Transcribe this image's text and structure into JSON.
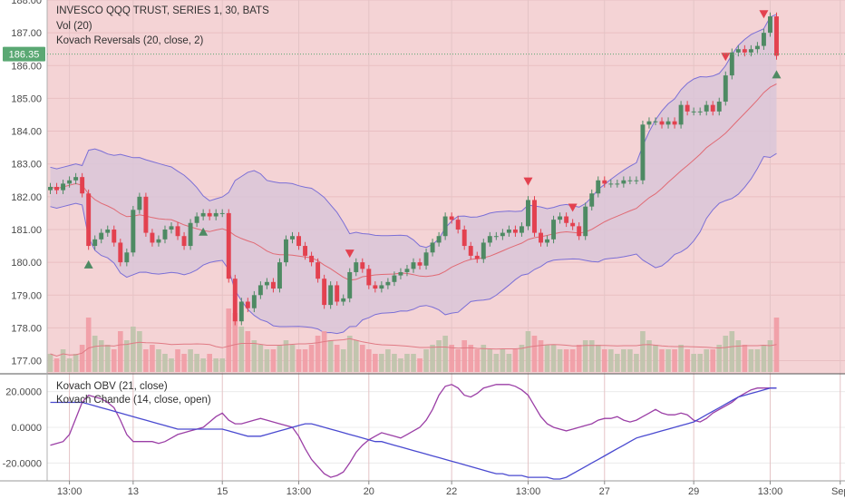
{
  "chart_title": "INVESCO QQQ TRUST, SERIES 1, 30, BATS",
  "legend_lines": [
    "Vol (20)",
    "Kovach Reversals (20, close, 2)"
  ],
  "lower_legend_lines": [
    "Kovach OBV (21, close)",
    "Kovach Chande (14, close, open)"
  ],
  "last_price_label": "186.35",
  "colors": {
    "up": "#4e8a63",
    "down": "#e3414f",
    "background_tint": "#f4cfd1",
    "band_fill": "#d9c6d8",
    "band_line": "#7b6fd6",
    "mid_line": "#e06a74",
    "obv_line": "#4a4ad0",
    "chande_line": "#9b3fa6",
    "price_tag": "#5aa873",
    "reversal_up": "#4e8a63",
    "reversal_down": "#e3414f"
  },
  "chart_data": {
    "type": "line",
    "price_axis": {
      "ylim": [
        176.6,
        188.0
      ],
      "ticks": [
        "188.00",
        "187.00",
        "186.00",
        "185.00",
        "184.00",
        "183.00",
        "182.00",
        "181.00",
        "180.00",
        "179.00",
        "178.00",
        "177.00"
      ],
      "tick_values": [
        188,
        187,
        186,
        185,
        184,
        183,
        182,
        181,
        180,
        179,
        178,
        177
      ]
    },
    "lower_axis": {
      "ylim": [
        -30,
        30
      ],
      "ticks": [
        "20.0000",
        "0.0000",
        "-20.0000"
      ],
      "tick_values": [
        20,
        0,
        -20
      ]
    },
    "x_ticks": [
      "13:00",
      "13",
      "15",
      "13:00",
      "20",
      "22",
      "13:00",
      "27",
      "29",
      "13:00",
      "Sep"
    ],
    "x_tick_positions": [
      3,
      13,
      27,
      39,
      50,
      63,
      75,
      87,
      101,
      113,
      124
    ],
    "bar_count": 115,
    "price_series": {
      "name": "",
      "close": [
        182.3,
        182.2,
        182.4,
        182.5,
        182.6,
        182.1,
        180.5,
        180.7,
        180.9,
        181.0,
        180.6,
        180.0,
        180.3,
        181.6,
        182.0,
        180.9,
        180.6,
        180.7,
        181.0,
        181.1,
        180.8,
        180.5,
        181.2,
        181.4,
        181.5,
        181.4,
        181.5,
        181.5,
        179.5,
        178.2,
        178.8,
        178.6,
        179.0,
        179.3,
        179.4,
        179.2,
        180.0,
        180.7,
        180.8,
        180.5,
        180.2,
        180.0,
        179.5,
        178.7,
        179.3,
        178.8,
        178.9,
        179.7,
        180.0,
        179.8,
        179.3,
        179.2,
        179.3,
        179.4,
        179.6,
        179.7,
        179.8,
        180.0,
        179.9,
        180.3,
        180.6,
        180.8,
        181.4,
        181.3,
        181.0,
        180.5,
        180.2,
        180.1,
        180.6,
        180.8,
        180.8,
        180.9,
        181.0,
        180.9,
        181.1,
        181.9,
        180.9,
        180.6,
        180.7,
        181.3,
        181.4,
        181.2,
        181.1,
        180.8,
        181.7,
        182.1,
        182.5,
        182.4,
        182.4,
        182.4,
        182.5,
        182.5,
        182.5,
        184.2,
        184.3,
        184.3,
        184.2,
        184.3,
        184.2,
        184.8,
        184.6,
        184.6,
        184.6,
        184.8,
        184.6,
        184.9,
        185.7,
        186.4,
        186.5,
        186.4,
        186.5,
        186.6,
        187.0,
        187.5,
        186.3
      ]
    },
    "volume_series": {
      "name": "",
      "values": [
        4,
        3,
        5,
        3,
        4,
        6,
        12,
        8,
        7,
        6,
        5,
        9,
        7,
        10,
        9,
        5,
        6,
        5,
        4,
        3,
        5,
        4,
        5,
        4,
        3,
        4,
        3,
        3,
        14,
        13,
        10,
        9,
        7,
        6,
        5,
        5,
        6,
        7,
        6,
        5,
        5,
        6,
        8,
        9,
        7,
        6,
        5,
        8,
        7,
        6,
        5,
        4,
        4,
        5,
        4,
        3,
        4,
        4,
        3,
        5,
        6,
        7,
        8,
        6,
        5,
        7,
        6,
        5,
        6,
        5,
        4,
        5,
        4,
        5,
        6,
        9,
        8,
        7,
        6,
        6,
        5,
        5,
        5,
        6,
        7,
        7,
        6,
        5,
        5,
        4,
        5,
        5,
        4,
        9,
        7,
        6,
        5,
        5,
        5,
        6,
        5,
        4,
        4,
        5,
        5,
        6,
        8,
        9,
        7,
        6,
        5,
        5,
        6,
        7,
        12
      ]
    },
    "obv_series": {
      "name": "",
      "values": [
        14,
        14,
        14,
        14,
        14,
        14,
        13,
        12,
        11,
        10,
        9,
        8,
        7,
        6,
        5,
        4,
        3,
        2,
        1,
        0,
        -1,
        -1,
        -1,
        -1,
        -1,
        -1,
        -1,
        -1,
        -2,
        -3,
        -4,
        -5,
        -5,
        -5,
        -4,
        -3,
        -2,
        -1,
        0,
        1,
        2,
        2,
        1,
        0,
        -1,
        -2,
        -3,
        -4,
        -5,
        -6,
        -7,
        -8,
        -8,
        -9,
        -10,
        -11,
        -12,
        -13,
        -14,
        -15,
        -16,
        -17,
        -18,
        -19,
        -20,
        -21,
        -22,
        -23,
        -24,
        -25,
        -26,
        -26,
        -27,
        -27,
        -27,
        -28,
        -28,
        -28,
        -28,
        -29,
        -29,
        -28,
        -26,
        -24,
        -22,
        -20,
        -18,
        -16,
        -14,
        -12,
        -10,
        -8,
        -6,
        -5,
        -4,
        -3,
        -2,
        -1,
        0,
        1,
        2,
        3,
        5,
        7,
        9,
        11,
        13,
        15,
        17,
        18,
        19,
        20,
        21,
        22,
        22
      ]
    },
    "chande_series": {
      "name": "",
      "values": [
        -10,
        -9,
        -8,
        -4,
        5,
        14,
        18,
        17,
        16,
        14,
        11,
        4,
        -4,
        -8,
        -8,
        -8,
        -8,
        -9,
        -8,
        -6,
        -4,
        -3,
        -2,
        -1,
        0,
        3,
        6,
        8,
        4,
        2,
        2,
        3,
        4,
        5,
        4,
        3,
        2,
        1,
        0,
        -5,
        -12,
        -18,
        -22,
        -26,
        -28,
        -27,
        -25,
        -20,
        -14,
        -10,
        -7,
        -5,
        -3,
        -4,
        -5,
        -6,
        -4,
        -2,
        0,
        4,
        10,
        18,
        23,
        24,
        22,
        18,
        17,
        19,
        22,
        23,
        24,
        24,
        24,
        23,
        21,
        18,
        12,
        6,
        2,
        0,
        -1,
        -2,
        -1,
        0,
        1,
        2,
        4,
        5,
        5,
        6,
        4,
        3,
        4,
        6,
        8,
        10,
        8,
        7,
        7,
        8,
        7,
        4,
        3,
        5,
        8,
        10,
        12,
        14,
        17,
        19,
        21,
        22,
        22,
        22,
        22
      ]
    },
    "reversal_markers": [
      {
        "direction": "up",
        "index": 6
      },
      {
        "direction": "up",
        "index": 24
      },
      {
        "direction": "down",
        "index": 47
      },
      {
        "direction": "down",
        "index": 75
      },
      {
        "direction": "down",
        "index": 82
      },
      {
        "direction": "down",
        "index": 106
      },
      {
        "direction": "down",
        "index": 112
      },
      {
        "direction": "up",
        "index": 114
      }
    ]
  }
}
